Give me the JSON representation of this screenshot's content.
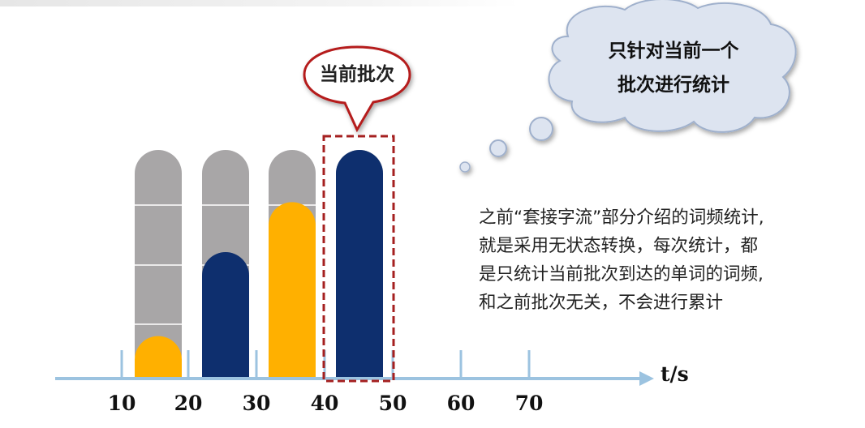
{
  "axis": {
    "unit_label": "t/s",
    "ticks": [
      "10",
      "20",
      "30",
      "40",
      "50",
      "60",
      "70"
    ]
  },
  "batches": [
    {
      "label": "10-20",
      "fill_fraction": 0.18,
      "color": "#ffb000"
    },
    {
      "label": "20-30",
      "fill_fraction": 0.55,
      "color": "#0e2f6e"
    },
    {
      "label": "30-40",
      "fill_fraction": 0.77,
      "color": "#ffb000"
    },
    {
      "label": "40-50",
      "fill_fraction": 1.0,
      "color": "#0e2f6e",
      "current": true
    }
  ],
  "colors": {
    "empty_bar": "#a8a6a7",
    "axis": "#9cc3e0",
    "highlight_border": "#a52020",
    "callout_border": "#b51c1c",
    "thought_fill": "#dde4f0"
  },
  "callout": {
    "text": "当前批次"
  },
  "thought_bubble": {
    "lines": [
      "只针对当前一个",
      "批次进行统计"
    ]
  },
  "description": {
    "lines": [
      "之前“套接字流”部分介绍的词频统计,",
      "就是采用无状态转换，每次统计，都",
      "是只统计当前批次到达的单词的词频,",
      "和之前批次无关，不会进行累计"
    ]
  }
}
